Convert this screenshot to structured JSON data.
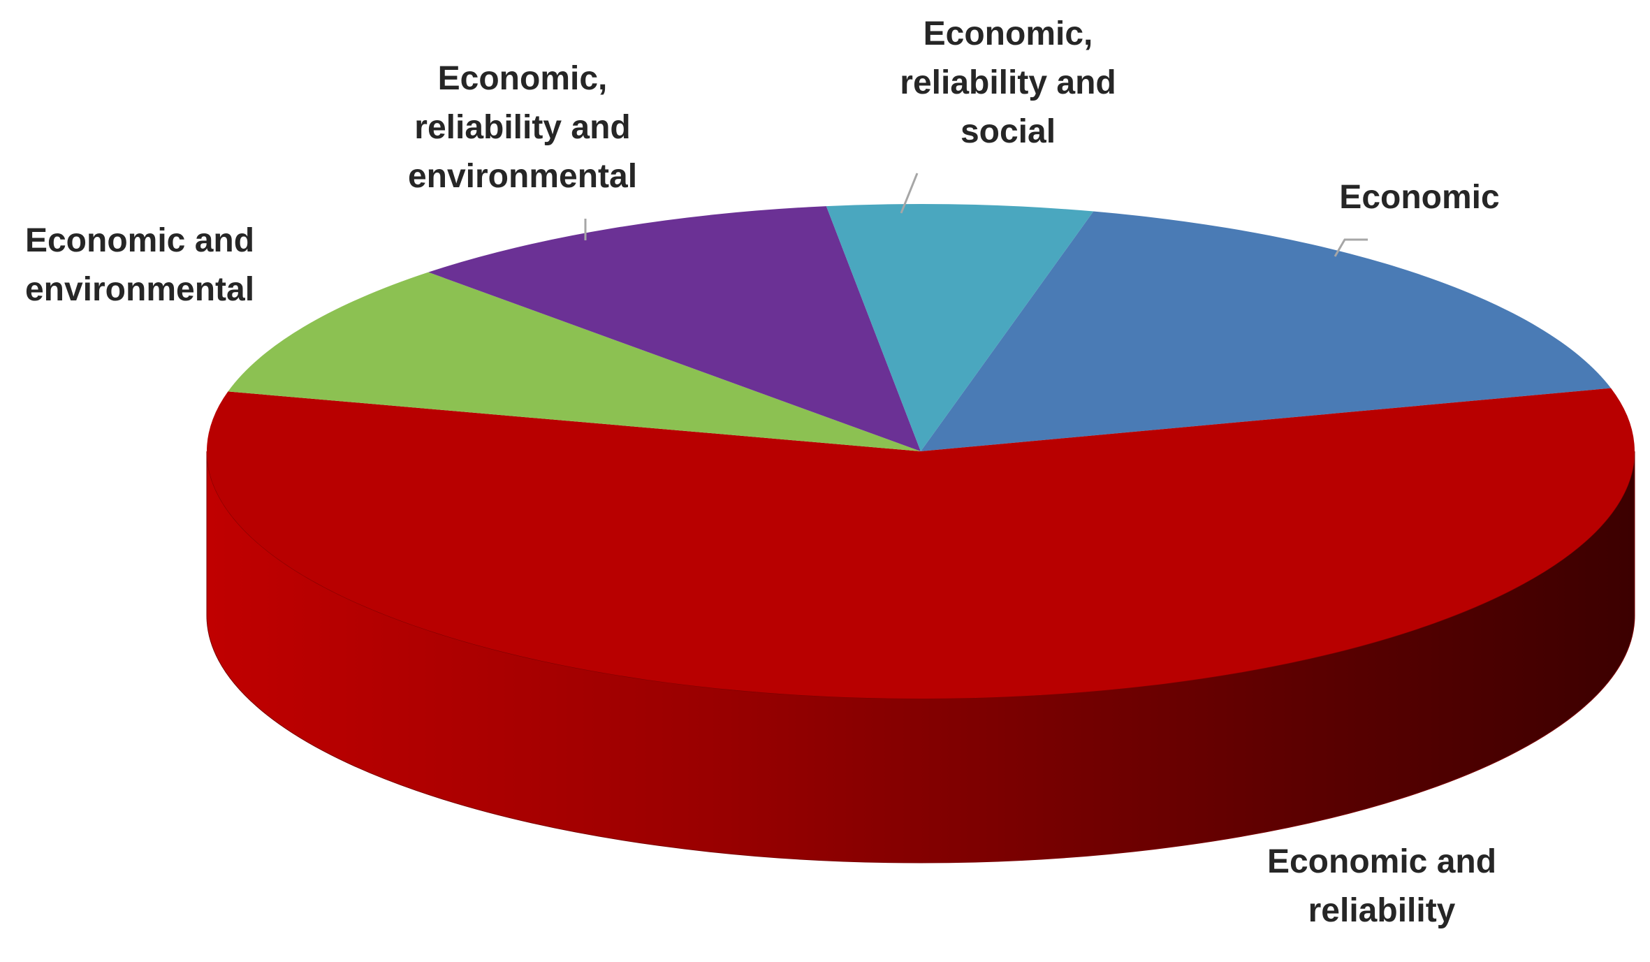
{
  "chart_data": {
    "type": "pie",
    "style": "3d-pie",
    "title": "",
    "legend": "none",
    "categories": [
      "Economic",
      "Economic and reliability",
      "Economic and environmental",
      "Economic, reliability and environmental",
      "Economic, reliability and social"
    ],
    "values": [
      17,
      58,
      9,
      10,
      6
    ],
    "unit": "%",
    "colors": [
      "#4a7bb5",
      "#b80000",
      "#8cc152",
      "#6b3195",
      "#4aa7bf"
    ],
    "labels": [
      [
        "Economic"
      ],
      [
        "Economic and",
        "reliability"
      ],
      [
        "Economic and",
        "environmental"
      ],
      [
        "Economic,",
        "reliability and",
        "environmental"
      ],
      [
        "Economic,",
        "reliability and",
        "social"
      ]
    ]
  }
}
